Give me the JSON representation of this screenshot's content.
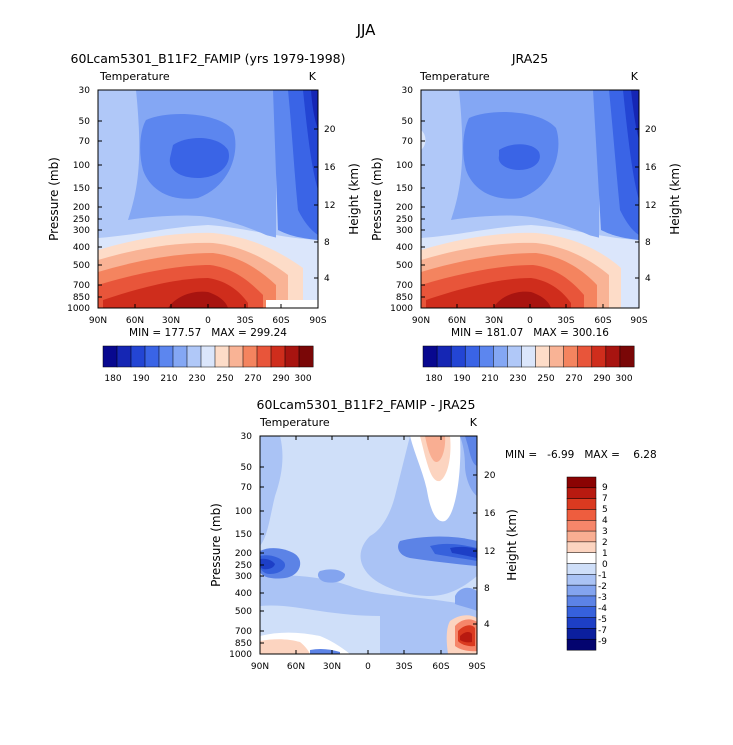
{
  "page_title": "JJA",
  "chart_data": [
    {
      "type": "heatmap",
      "title": "60Lcam5301_B11F2_FAMIP (yrs 1979-1998)",
      "subtitle_left": "Temperature",
      "units": "K",
      "xlabel": "",
      "ylabel": "Pressure (mb)",
      "ylabel_right": "Height (km)",
      "x_ticks": [
        "90N",
        "60N",
        "30N",
        "0",
        "30S",
        "60S",
        "90S"
      ],
      "y_ticks": [
        "30",
        "50",
        "70",
        "100",
        "150",
        "200",
        "250",
        "300",
        "400",
        "500",
        "700",
        "850",
        "1000"
      ],
      "height_ticks": [
        "20",
        "16",
        "12",
        "8",
        "4"
      ],
      "stats": "MIN = 177.57   MAX = 299.24",
      "color_levels": [
        180,
        190,
        200,
        210,
        220,
        230,
        240,
        250,
        260,
        270,
        280,
        290,
        300
      ],
      "colorbar_labels": [
        "180",
        "190",
        "210",
        "230",
        "250",
        "270",
        "290",
        "300"
      ]
    },
    {
      "type": "heatmap",
      "title": "JRA25",
      "subtitle_left": "Temperature",
      "units": "K",
      "xlabel": "",
      "ylabel": "Pressure (mb)",
      "ylabel_right": "Height (km)",
      "x_ticks": [
        "90N",
        "60N",
        "30N",
        "0",
        "30S",
        "60S",
        "90S"
      ],
      "y_ticks": [
        "30",
        "50",
        "70",
        "100",
        "150",
        "200",
        "250",
        "300",
        "400",
        "500",
        "700",
        "850",
        "1000"
      ],
      "height_ticks": [
        "20",
        "16",
        "12",
        "8",
        "4"
      ],
      "stats": "MIN = 181.07   MAX = 300.16",
      "color_levels": [
        180,
        190,
        200,
        210,
        220,
        230,
        240,
        250,
        260,
        270,
        280,
        290,
        300
      ],
      "colorbar_labels": [
        "180",
        "190",
        "210",
        "230",
        "250",
        "270",
        "290",
        "300"
      ]
    },
    {
      "type": "heatmap",
      "title": "60Lcam5301_B11F2_FAMIP - JRA25",
      "subtitle_left": "Temperature",
      "units": "K",
      "xlabel": "",
      "ylabel": "Pressure (mb)",
      "ylabel_right": "Height (km)",
      "x_ticks": [
        "90N",
        "60N",
        "30N",
        "0",
        "30S",
        "60S",
        "90S"
      ],
      "y_ticks": [
        "30",
        "50",
        "70",
        "100",
        "150",
        "200",
        "250",
        "300",
        "400",
        "500",
        "700",
        "850",
        "1000"
      ],
      "height_ticks": [
        "20",
        "16",
        "12",
        "8",
        "4"
      ],
      "stats": "MIN =   -6.99   MAX =    6.28",
      "color_levels": [
        -9,
        -7,
        -5,
        -4,
        -3,
        -2,
        -1,
        0,
        1,
        2,
        3,
        4,
        5,
        7,
        9
      ],
      "colorbar_labels": [
        "9",
        "7",
        "5",
        "4",
        "3",
        "2",
        "1",
        "0",
        "-1",
        "-2",
        "-3",
        "-4",
        "-5",
        "-7",
        "-9"
      ]
    }
  ],
  "palette": {
    "temperature": [
      "#08088f",
      "#1526b4",
      "#2345d4",
      "#3a64e6",
      "#5c86ef",
      "#84a7f4",
      "#b0c8f8",
      "#dbe6fb",
      "#fddcc8",
      "#f9b395",
      "#f4845f",
      "#e8553a",
      "#cf2d1c",
      "#a81410",
      "#7a0707"
    ],
    "difference": [
      "#8b0303",
      "#b81a10",
      "#da3a20",
      "#ee5d3e",
      "#f6866a",
      "#f9ae92",
      "#fcd4c0",
      "#ffffff",
      "#cfdff9",
      "#aac3f5",
      "#83a4ef",
      "#5c83e6",
      "#3661dc",
      "#1d3fc6",
      "#0b1f9e",
      "#03046f"
    ]
  }
}
